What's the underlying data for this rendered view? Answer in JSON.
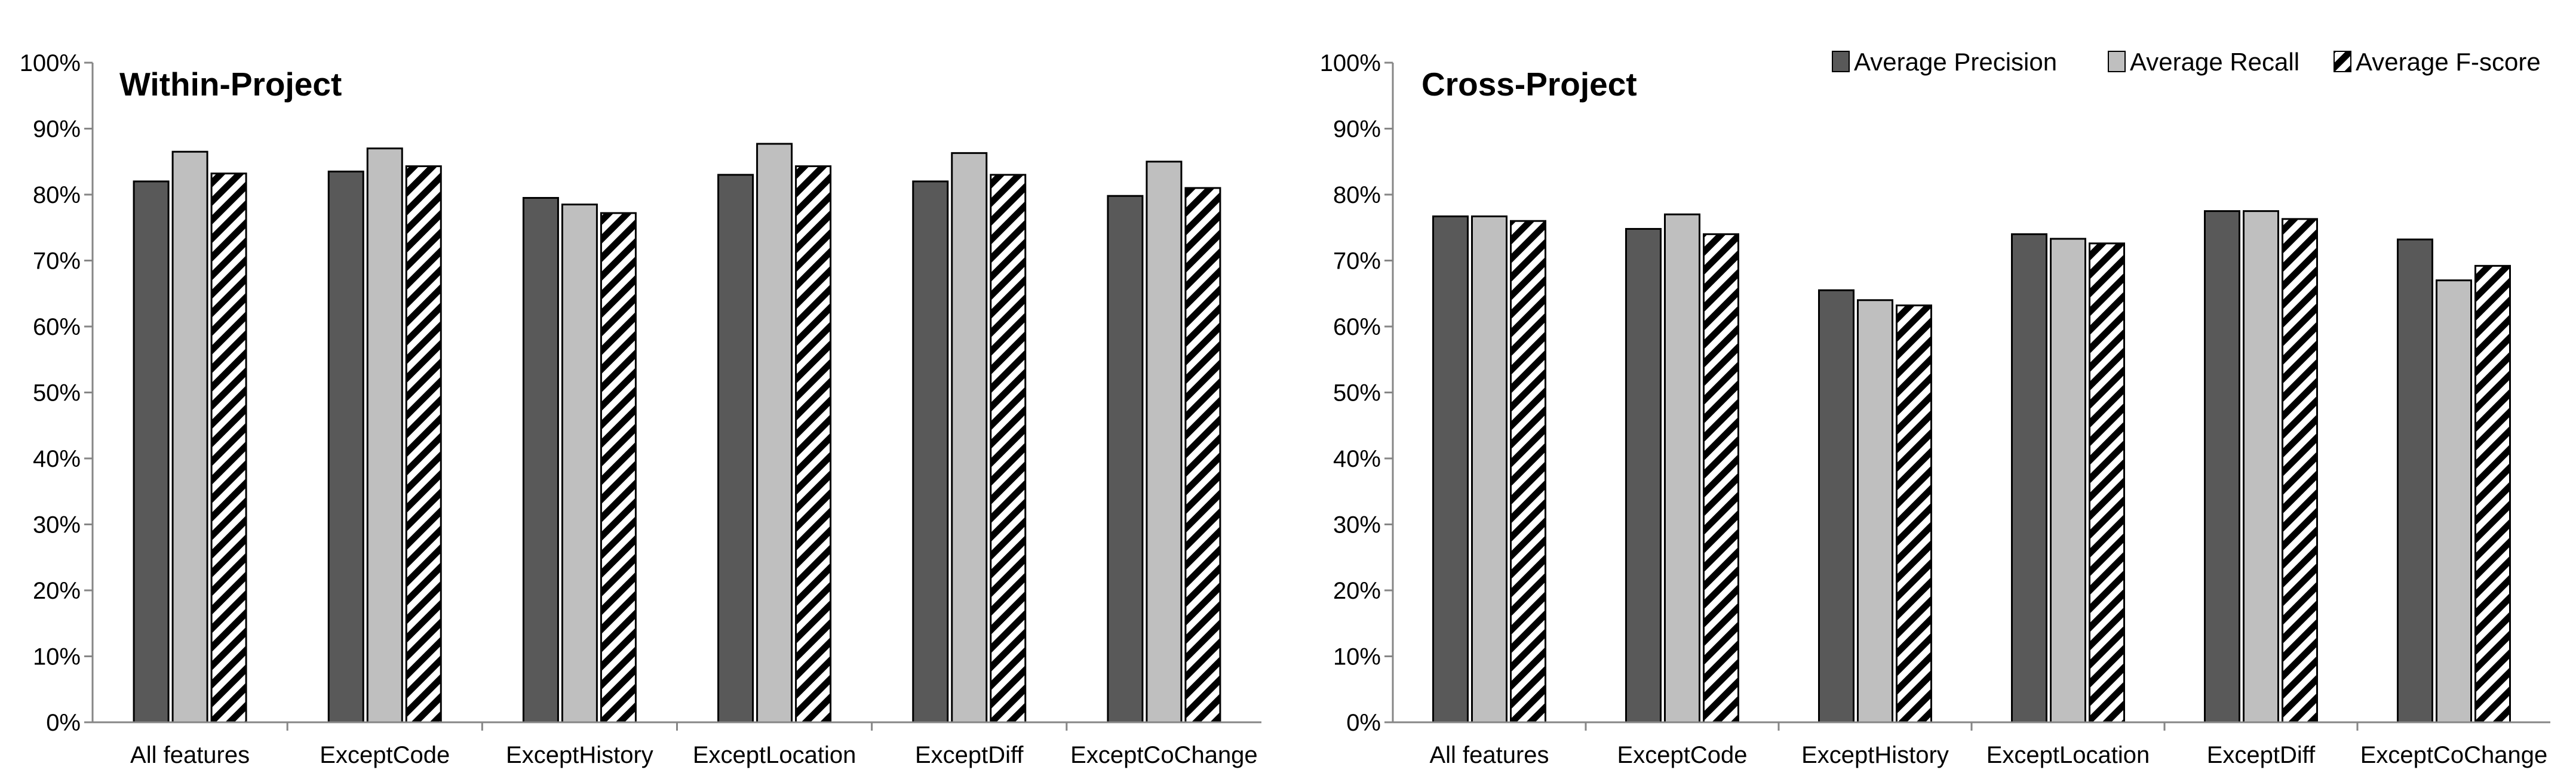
{
  "colors": {
    "precision": "#595959",
    "recall": "#bfbfbf",
    "fscore_stripe": "#000000",
    "axis": "#868686",
    "bar_outline": "#000000"
  },
  "legend": {
    "items": [
      {
        "label": "Average Precision",
        "style": "solid-dark-gray"
      },
      {
        "label": "Average Recall",
        "style": "solid-light-gray"
      },
      {
        "label": "Average F-score",
        "style": "diagonal-stripes"
      }
    ]
  },
  "chart_data": [
    {
      "type": "bar",
      "title": "Within-Project",
      "xlabel": "",
      "ylabel": "",
      "ylim": [
        0,
        100
      ],
      "y_ticks": [
        "0%",
        "10%",
        "20%",
        "30%",
        "40%",
        "50%",
        "60%",
        "70%",
        "80%",
        "90%",
        "100%"
      ],
      "categories": [
        "All features",
        "ExceptCode",
        "ExceptHistory",
        "ExceptLocation",
        "ExceptDiff",
        "ExceptCoChange"
      ],
      "series": [
        {
          "name": "Average Precision",
          "values": [
            82,
            83.5,
            79.5,
            83,
            82,
            79.8
          ]
        },
        {
          "name": "Average Recall",
          "values": [
            86.5,
            87,
            78.5,
            87.7,
            86.3,
            85
          ]
        },
        {
          "name": "Average F-score",
          "values": [
            83.2,
            84.3,
            77.2,
            84.3,
            83,
            81
          ]
        }
      ],
      "grid": false
    },
    {
      "type": "bar",
      "title": "Cross-Project",
      "xlabel": "",
      "ylabel": "",
      "ylim": [
        0,
        100
      ],
      "y_ticks": [
        "0%",
        "10%",
        "20%",
        "30%",
        "40%",
        "50%",
        "60%",
        "70%",
        "80%",
        "90%",
        "100%"
      ],
      "categories": [
        "All features",
        "ExceptCode",
        "ExceptHistory",
        "ExceptLocation",
        "ExceptDiff",
        "ExceptCoChange"
      ],
      "series": [
        {
          "name": "Average Precision",
          "values": [
            76.7,
            74.8,
            65.5,
            74,
            77.5,
            73.2
          ]
        },
        {
          "name": "Average Recall",
          "values": [
            76.7,
            77,
            64,
            73.3,
            77.5,
            67
          ]
        },
        {
          "name": "Average F-score",
          "values": [
            76,
            74,
            63.2,
            72.6,
            76.3,
            69.2
          ]
        }
      ],
      "grid": false,
      "legend_position": "top-right"
    }
  ]
}
